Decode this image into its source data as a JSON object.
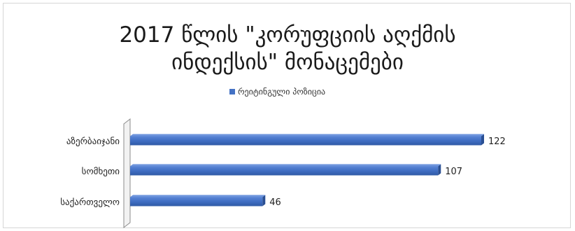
{
  "chart_data": {
    "type": "bar",
    "orientation": "horizontal",
    "title_lines": [
      "2017 წლის \"კორუფციის აღქმის",
      "ინდექსის\" მონაცემები"
    ],
    "categories": [
      "აზერბაიჯანი",
      "სომხეთი",
      "საქართველო"
    ],
    "series": [
      {
        "name": "რეიტინგული პოზიცია",
        "values": [
          122,
          107,
          46
        ],
        "color": "#4472c4"
      }
    ],
    "xlim": [
      0,
      122
    ],
    "legend_position": "top",
    "grid": false,
    "data_labels": true
  }
}
